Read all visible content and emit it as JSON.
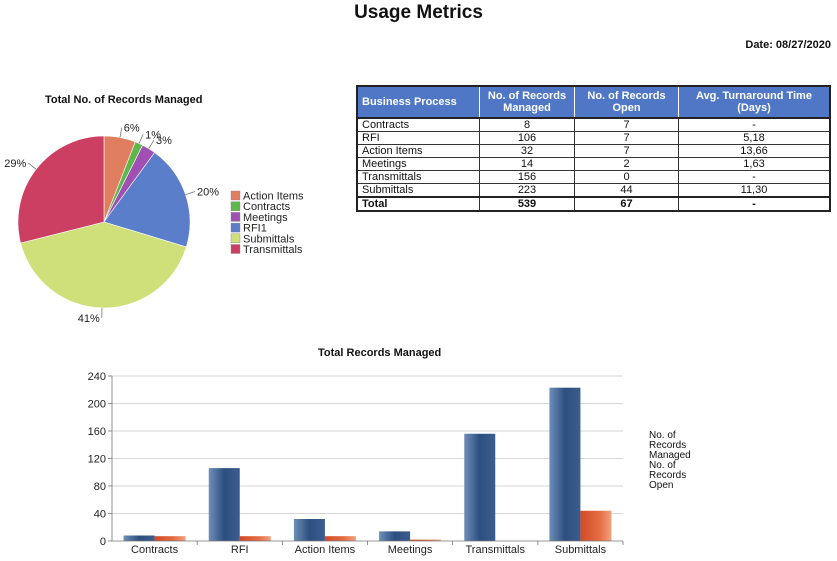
{
  "page": {
    "title": "Usage Metrics",
    "date_label": "Date: 08/27/2020"
  },
  "table": {
    "headers": [
      "Business Process",
      "No. of Records Managed",
      "No. of Records Open",
      "Avg. Turnaround Time (Days)"
    ],
    "rows": [
      [
        "Contracts",
        "8",
        "7",
        "-"
      ],
      [
        "RFI",
        "106",
        "7",
        "5,18"
      ],
      [
        "Action Items",
        "32",
        "7",
        "13,66"
      ],
      [
        "Meetings",
        "14",
        "2",
        "1,63"
      ],
      [
        "Transmittals",
        "156",
        "0",
        "-"
      ],
      [
        "Submittals",
        "223",
        "44",
        "11,30"
      ]
    ],
    "total": [
      "Total",
      "539",
      "67",
      "-"
    ]
  },
  "chart_data": [
    {
      "type": "pie",
      "title": "Total No. of Records Managed",
      "slices": [
        {
          "label": "Action Items",
          "percent_label": "6%",
          "value": 32,
          "color": "#e07f5f"
        },
        {
          "label": "Contracts",
          "percent_label": "1%",
          "value": 8,
          "color": "#5cb84a"
        },
        {
          "label": "Meetings",
          "percent_label": "3%",
          "value": 14,
          "color": "#a04fb3"
        },
        {
          "label": "RFI1",
          "percent_label": "20%",
          "value": 106,
          "color": "#5a7ec9"
        },
        {
          "label": "Submittals",
          "percent_label": "41%",
          "value": 223,
          "color": "#cfe07a"
        },
        {
          "label": "Transmittals",
          "percent_label": "29%",
          "value": 156,
          "color": "#cc3f63"
        }
      ],
      "legend_position": "right"
    },
    {
      "type": "bar",
      "title": "Total Records Managed",
      "categories": [
        "Contracts",
        "RFI",
        "Action Items",
        "Meetings",
        "Transmittals",
        "Submittals"
      ],
      "series": [
        {
          "name": "No. of Records Managed",
          "values": [
            8,
            106,
            32,
            14,
            156,
            223
          ],
          "color": "#3a5d8f"
        },
        {
          "name": "No. of Records Open",
          "values": [
            7,
            7,
            7,
            2,
            0,
            44
          ],
          "color": "#e0623a"
        }
      ],
      "ylim": [
        0,
        240
      ],
      "yticks": [
        0,
        40,
        80,
        120,
        160,
        200,
        240
      ],
      "grid": true,
      "legend_position": "right"
    }
  ]
}
